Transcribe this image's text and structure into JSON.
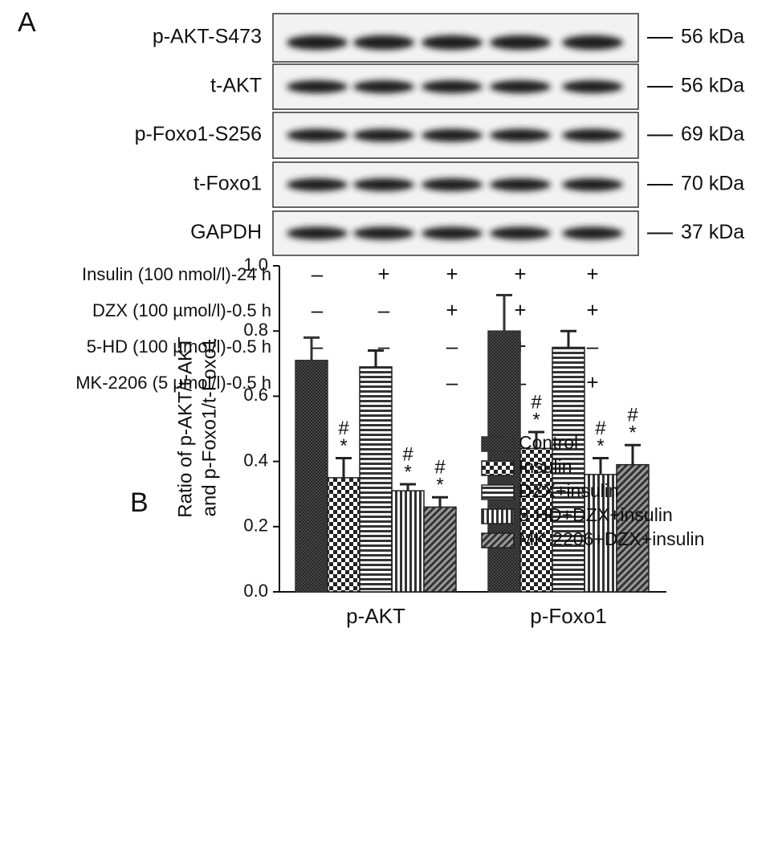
{
  "panel_a": {
    "letter": "A",
    "rows": [
      {
        "label": "p-AKT-S473",
        "kda": "56 kDa"
      },
      {
        "label": "t-AKT",
        "kda": "56 kDa"
      },
      {
        "label": "p-Foxo1-S256",
        "kda": "69 kDa"
      },
      {
        "label": "t-Foxo1",
        "kda": "70 kDa"
      },
      {
        "label": "GAPDH",
        "kda": "37 kDa"
      }
    ],
    "treatments": [
      {
        "label": "Insulin (100 nmol/l)-24 h",
        "signs": [
          "–",
          "+",
          "+",
          "+",
          "+"
        ]
      },
      {
        "label": "DZX (100 µmol/l)-0.5 h",
        "signs": [
          "–",
          "–",
          "+",
          "+",
          "+"
        ]
      },
      {
        "label": "5-HD (100 µmol/l)-0.5 h",
        "signs": [
          "–",
          "–",
          "–",
          "+",
          "–"
        ]
      },
      {
        "label": "MK-2206 (5 µmol/l)-0.5 h",
        "signs": [
          "–",
          "–",
          "–",
          "–",
          "+"
        ]
      }
    ]
  },
  "chart_data": {
    "type": "bar",
    "letter": "B",
    "ylabel": [
      "Ratio of p-AKT/t-AKT",
      "and p-Foxo1/t-Foxo1"
    ],
    "categories": [
      "p-AKT",
      "p-Foxo1"
    ],
    "series": [
      {
        "name": "Control",
        "color": "#333333",
        "pattern": "crosshatch",
        "values": [
          0.71,
          0.8
        ],
        "errors": [
          0.07,
          0.11
        ]
      },
      {
        "name": "Insulin",
        "color": "#222222",
        "pattern": "checker",
        "values": [
          0.35,
          0.44
        ],
        "errors": [
          0.06,
          0.05
        ],
        "significance": [
          [
            "#",
            "*"
          ],
          [
            "#",
            "*"
          ]
        ]
      },
      {
        "name": "DZX+insulin",
        "color": "#222222",
        "pattern": "horizontal",
        "values": [
          0.69,
          0.75
        ],
        "errors": [
          0.05,
          0.05
        ]
      },
      {
        "name": "5-HD+DZX+insulin",
        "color": "#222222",
        "pattern": "vertical",
        "values": [
          0.31,
          0.36
        ],
        "errors": [
          0.02,
          0.05
        ],
        "significance": [
          [
            "#",
            "*"
          ],
          [
            "#",
            "*"
          ]
        ]
      },
      {
        "name": "MK-2206+DZX+insulin",
        "color": "#222222",
        "pattern": "diagonal",
        "values": [
          0.26,
          0.39
        ],
        "errors": [
          0.03,
          0.06
        ],
        "significance": [
          [
            "#",
            "*"
          ],
          [
            "#",
            "*"
          ]
        ]
      }
    ],
    "ylim": [
      0,
      1
    ],
    "yticks": [
      {
        "value": 0,
        "label": "0.0"
      },
      0.2,
      0.4,
      0.6,
      0.8,
      {
        "value": 1,
        "label": "1.0"
      }
    ]
  }
}
